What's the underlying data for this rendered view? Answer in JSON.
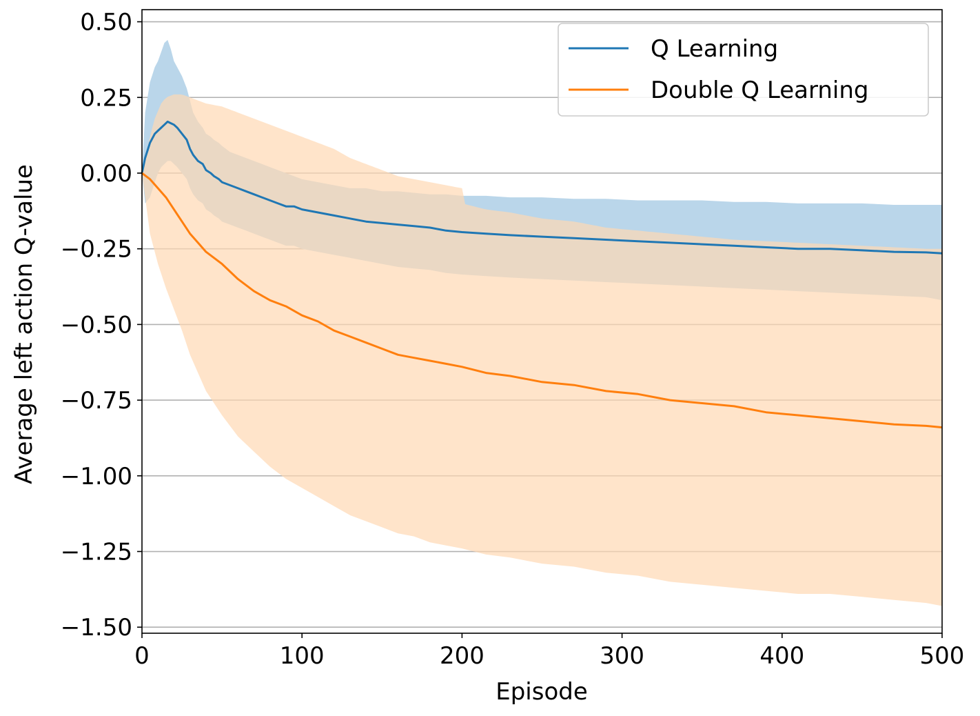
{
  "chart_data": {
    "type": "line",
    "title": "",
    "xlabel": "Episode",
    "ylabel": "Average left action Q-value",
    "xlim": [
      0,
      500
    ],
    "ylim": [
      -1.52,
      0.54
    ],
    "xticks": [
      0,
      100,
      200,
      300,
      400,
      500
    ],
    "xtick_labels": [
      "0",
      "100",
      "200",
      "300",
      "400",
      "500"
    ],
    "yticks": [
      0.5,
      0.25,
      0,
      -0.25,
      -0.5,
      -0.75,
      -1.0,
      -1.25,
      -1.5
    ],
    "ytick_labels": [
      "0.50",
      "0.25",
      "0.00",
      "−0.25",
      "−0.50",
      "−0.75",
      "−1.00",
      "−1.25",
      "−1.50"
    ],
    "grid": "horizontal",
    "legend_position": "top-right",
    "series": [
      {
        "name": "Q Learning",
        "color": "#1f77b4",
        "band_color": "#bad6ea",
        "x": [
          0,
          2,
          5,
          8,
          10,
          12,
          14,
          16,
          18,
          20,
          22,
          25,
          28,
          30,
          32,
          35,
          38,
          40,
          43,
          45,
          48,
          50,
          55,
          60,
          65,
          70,
          75,
          80,
          85,
          90,
          95,
          100,
          110,
          120,
          130,
          140,
          150,
          160,
          170,
          180,
          190,
          200,
          215,
          230,
          250,
          270,
          290,
          310,
          330,
          350,
          370,
          390,
          410,
          430,
          450,
          470,
          490,
          500
        ],
        "y": [
          0.0,
          0.05,
          0.1,
          0.13,
          0.14,
          0.15,
          0.16,
          0.17,
          0.165,
          0.16,
          0.15,
          0.13,
          0.11,
          0.08,
          0.06,
          0.04,
          0.03,
          0.01,
          0.0,
          -0.01,
          -0.02,
          -0.03,
          -0.04,
          -0.05,
          -0.06,
          -0.07,
          -0.08,
          -0.09,
          -0.1,
          -0.11,
          -0.11,
          -0.12,
          -0.13,
          -0.14,
          -0.15,
          -0.16,
          -0.165,
          -0.17,
          -0.175,
          -0.18,
          -0.19,
          -0.195,
          -0.2,
          -0.205,
          -0.21,
          -0.215,
          -0.22,
          -0.225,
          -0.23,
          -0.235,
          -0.24,
          -0.245,
          -0.25,
          -0.25,
          -0.255,
          -0.26,
          -0.262,
          -0.265
        ],
        "lower": [
          0.0,
          -0.1,
          -0.08,
          -0.03,
          0.0,
          0.02,
          0.03,
          0.04,
          0.04,
          0.03,
          0.02,
          0.0,
          -0.02,
          -0.05,
          -0.07,
          -0.09,
          -0.1,
          -0.12,
          -0.13,
          -0.14,
          -0.15,
          -0.16,
          -0.17,
          -0.18,
          -0.19,
          -0.2,
          -0.21,
          -0.22,
          -0.23,
          -0.24,
          -0.24,
          -0.25,
          -0.26,
          -0.27,
          -0.28,
          -0.29,
          -0.3,
          -0.31,
          -0.315,
          -0.32,
          -0.33,
          -0.335,
          -0.34,
          -0.345,
          -0.35,
          -0.355,
          -0.36,
          -0.365,
          -0.37,
          -0.375,
          -0.38,
          -0.385,
          -0.39,
          -0.395,
          -0.4,
          -0.405,
          -0.41,
          -0.42
        ],
        "upper": [
          0.0,
          0.2,
          0.3,
          0.35,
          0.37,
          0.4,
          0.43,
          0.44,
          0.41,
          0.37,
          0.35,
          0.32,
          0.28,
          0.24,
          0.2,
          0.17,
          0.15,
          0.13,
          0.12,
          0.11,
          0.1,
          0.09,
          0.07,
          0.06,
          0.05,
          0.04,
          0.03,
          0.02,
          0.01,
          0.0,
          -0.01,
          -0.02,
          -0.03,
          -0.04,
          -0.05,
          -0.05,
          -0.06,
          -0.06,
          -0.065,
          -0.07,
          -0.07,
          -0.075,
          -0.075,
          -0.08,
          -0.08,
          -0.085,
          -0.085,
          -0.09,
          -0.09,
          -0.09,
          -0.095,
          -0.095,
          -0.1,
          -0.1,
          -0.1,
          -0.105,
          -0.105,
          -0.105
        ]
      },
      {
        "name": "Double Q Learning",
        "color": "#ff7f0e",
        "band_color": "#ffd8b4",
        "x": [
          0,
          5,
          10,
          15,
          20,
          25,
          30,
          35,
          40,
          50,
          60,
          70,
          80,
          90,
          100,
          110,
          120,
          130,
          140,
          150,
          160,
          170,
          180,
          190,
          200,
          215,
          230,
          250,
          270,
          290,
          310,
          330,
          350,
          370,
          390,
          410,
          430,
          450,
          470,
          490,
          500
        ],
        "y": [
          0.0,
          -0.02,
          -0.05,
          -0.08,
          -0.12,
          -0.16,
          -0.2,
          -0.23,
          -0.26,
          -0.3,
          -0.35,
          -0.39,
          -0.42,
          -0.44,
          -0.47,
          -0.49,
          -0.52,
          -0.54,
          -0.56,
          -0.58,
          -0.6,
          -0.61,
          -0.62,
          -0.63,
          -0.64,
          -0.66,
          -0.67,
          -0.69,
          -0.7,
          -0.72,
          -0.73,
          -0.75,
          -0.76,
          -0.77,
          -0.79,
          -0.8,
          -0.81,
          -0.82,
          -0.83,
          -0.835,
          -0.84
        ],
        "lower": [
          0.0,
          -0.2,
          -0.3,
          -0.38,
          -0.45,
          -0.52,
          -0.6,
          -0.66,
          -0.72,
          -0.8,
          -0.87,
          -0.92,
          -0.97,
          -1.01,
          -1.04,
          -1.07,
          -1.1,
          -1.13,
          -1.15,
          -1.17,
          -1.19,
          -1.2,
          -1.22,
          -1.23,
          -1.24,
          -1.26,
          -1.27,
          -1.29,
          -1.3,
          -1.32,
          -1.33,
          -1.35,
          -1.36,
          -1.37,
          -1.38,
          -1.39,
          -1.39,
          -1.4,
          -1.41,
          -1.42,
          -1.43
        ],
        "upper": [
          0.0,
          -0.15,
          -0.14,
          -0.13,
          -0.11,
          -0.1,
          -0.09,
          -0.08,
          -0.07,
          -0.05,
          -0.04,
          -0.03,
          -0.02,
          0.0,
          0.0,
          -0.01,
          -0.02,
          -0.03,
          -0.04,
          -0.05,
          -0.06,
          -0.07,
          -0.08,
          -0.09,
          -0.1,
          -0.12,
          -0.13,
          -0.15,
          -0.16,
          -0.18,
          -0.19,
          -0.2,
          -0.21,
          -0.22,
          -0.225,
          -0.23,
          -0.235,
          -0.24,
          -0.245,
          -0.25,
          -0.25
        ]
      },
      {
        "name": "",
        "role": "upper envelope of Double Q Learning band",
        "x": [
          0,
          5,
          8,
          12,
          15,
          20,
          25,
          30,
          35,
          40,
          50,
          60,
          70,
          80,
          90,
          100,
          110,
          120,
          130,
          140,
          150,
          160,
          180,
          200
        ],
        "y": [
          0.0,
          0.12,
          0.18,
          0.23,
          0.25,
          0.26,
          0.26,
          0.25,
          0.24,
          0.23,
          0.22,
          0.2,
          0.18,
          0.16,
          0.14,
          0.12,
          0.1,
          0.08,
          0.05,
          0.03,
          0.01,
          -0.01,
          -0.03,
          -0.05
        ]
      }
    ]
  }
}
